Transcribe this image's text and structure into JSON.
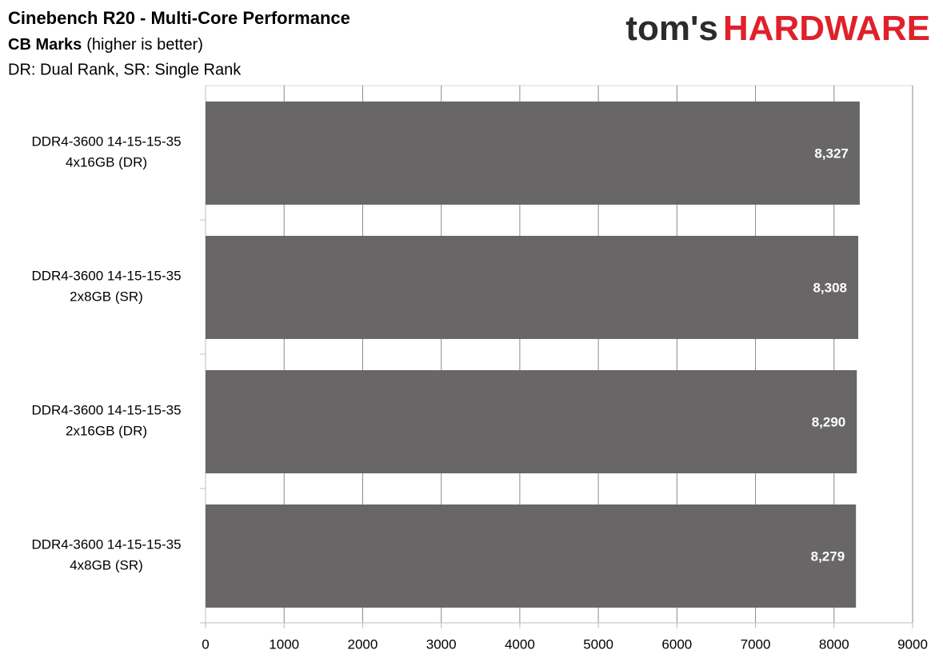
{
  "chart_data": {
    "type": "hbar",
    "title": "Cinebench R20 - Multi-Core Performance",
    "subtitle": {
      "bold": "CB Marks",
      "text": "(higher is better)"
    },
    "note": "DR: Dual Rank, SR: Single Rank",
    "logo": {
      "left": "tom's",
      "right": "HARDWARE"
    },
    "categories": [
      [
        "DDR4-3600 14-15-15-35",
        "4x16GB (DR)"
      ],
      [
        "DDR4-3600 14-15-15-35",
        "2x8GB (SR)"
      ],
      [
        "DDR4-3600 14-15-15-35",
        "2x16GB (DR)"
      ],
      [
        "DDR4-3600 14-15-15-35",
        "4x8GB (SR)"
      ]
    ],
    "values": [
      8327,
      8308,
      8290,
      8279
    ],
    "value_labels": [
      "8,327",
      "8,308",
      "8,290",
      "8,279"
    ],
    "color": "#686666",
    "xlim": [
      0,
      9000
    ],
    "xticks": [
      0,
      1000,
      2000,
      3000,
      4000,
      5000,
      6000,
      7000,
      8000,
      9000
    ],
    "grid": true
  }
}
